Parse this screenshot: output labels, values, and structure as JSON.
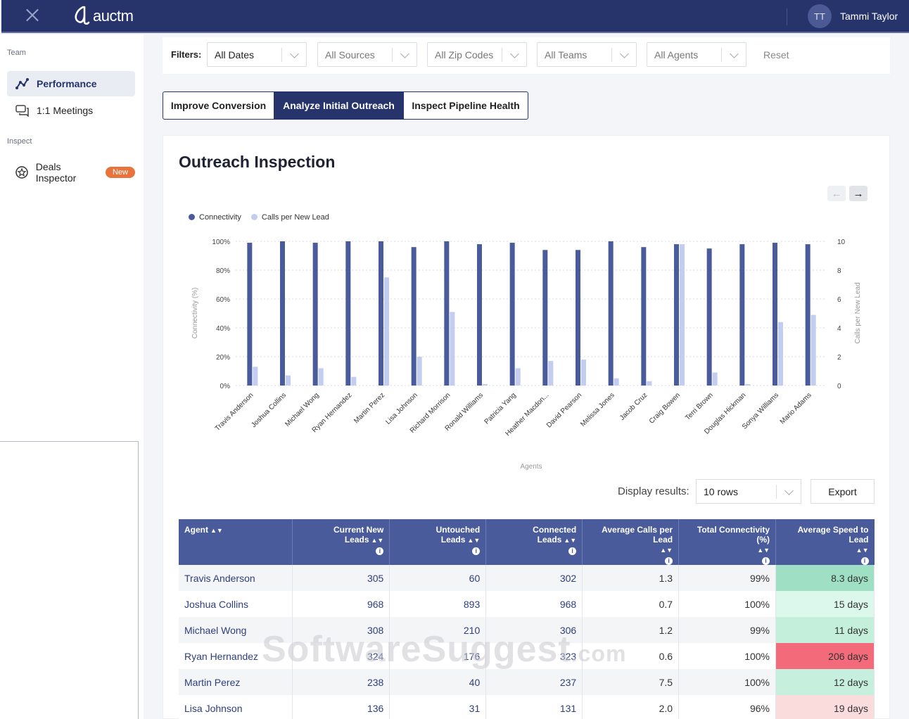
{
  "app": {
    "logo_text": "auctm",
    "user_initials": "TT",
    "user_name": "Tammi Taylor"
  },
  "sidebar": {
    "section_team": "Team",
    "section_inspect": "Inspect",
    "items": [
      {
        "label": "Performance",
        "icon": "performance-icon",
        "active": true
      },
      {
        "label": "1:1 Meetings",
        "icon": "chat-bubbles-icon",
        "active": false
      },
      {
        "label": "Deals Inspector",
        "icon": "star-circle-icon",
        "badge": "New",
        "active": false
      }
    ]
  },
  "filters": {
    "label": "Filters:",
    "dates": "All Dates",
    "sources": "All Sources",
    "zip_codes": "All Zip Codes",
    "teams": "All Teams",
    "agents": "All Agents",
    "reset": "Reset"
  },
  "tabs": [
    "Improve Conversion",
    "Analyze Initial Outreach",
    "Inspect Pipeline Health"
  ],
  "card": {
    "title": "Outreach Inspection",
    "prev_icon": "arrow-left-icon",
    "next_icon": "arrow-right-icon"
  },
  "chart_data": {
    "type": "bar",
    "xlabel": "Agents",
    "ylabel_left": "Connectivity (%)",
    "ylabel_right": "Calls per New Lead",
    "ylim_left": [
      0,
      100
    ],
    "ylim_right": [
      0,
      10
    ],
    "y_ticks_left": [
      "0%",
      "20%",
      "40%",
      "60%",
      "80%",
      "100%"
    ],
    "y_ticks_right": [
      "0",
      "2",
      "4",
      "6",
      "8",
      "10"
    ],
    "legend_position": "top-left",
    "categories": [
      "Travis Anderson",
      "Joshua Collins",
      "Michael Wong",
      "Ryan Hernandez",
      "Martin Perez",
      "Lisa Johnson",
      "Richard Morrison",
      "Ronald Williams",
      "Patricia Yang",
      "Heather Macdon...",
      "David Pearson",
      "Melissa Jones",
      "Jacob Cruz",
      "Craig Bowen",
      "Terri Brown",
      "Douglas Hickman",
      "Sonya Williams",
      "Mario Adams"
    ],
    "series": [
      {
        "name": "Connectivity",
        "axis": "left",
        "color": "#4a5b9b",
        "values": [
          99,
          100,
          99,
          100,
          100,
          96,
          100,
          98,
          99,
          94,
          94,
          100,
          96,
          98,
          95,
          98,
          99,
          98
        ]
      },
      {
        "name": "Calls per New Lead",
        "axis": "right",
        "color": "#c3cdf0",
        "values": [
          1.3,
          0.7,
          1.2,
          0.6,
          7.5,
          2.0,
          5.1,
          0.1,
          1.2,
          1.7,
          1.8,
          0.5,
          0.3,
          9.8,
          0.9,
          0.1,
          4.4,
          4.9
        ]
      }
    ],
    "grid": true
  },
  "table_controls": {
    "display_label": "Display results:",
    "rows_value": "10 rows",
    "export_label": "Export"
  },
  "table": {
    "headers": [
      "Agent",
      "Current New Leads",
      "Untouched Leads",
      "Connected Leads",
      "Average Calls per Lead",
      "Total Connectivity (%)",
      "Average Speed to Lead"
    ],
    "rows": [
      {
        "cells": [
          "Travis Anderson",
          "305",
          "60",
          "302",
          "1.3",
          "99%",
          "8.3 days"
        ],
        "speed_color": "#9fe0c5"
      },
      {
        "cells": [
          "Joshua Collins",
          "968",
          "893",
          "968",
          "0.7",
          "100%",
          "15 days"
        ],
        "speed_color": "#dcf7ec"
      },
      {
        "cells": [
          "Michael Wong",
          "308",
          "210",
          "306",
          "1.2",
          "99%",
          "11 days"
        ],
        "speed_color": "#c3efdb"
      },
      {
        "cells": [
          "Ryan Hernandez",
          "324",
          "176",
          "323",
          "0.6",
          "100%",
          "206 days"
        ],
        "speed_color": "#f36b7a"
      },
      {
        "cells": [
          "Martin Perez",
          "238",
          "40",
          "237",
          "7.5",
          "100%",
          "12 days"
        ],
        "speed_color": "#c6f0dd"
      },
      {
        "cells": [
          "Lisa Johnson",
          "136",
          "31",
          "131",
          "2.0",
          "96%",
          "19 days"
        ],
        "speed_color": "#fbdcdd"
      }
    ]
  },
  "watermark": {
    "main": "SoftwareSuggest",
    "suffix": ".com"
  }
}
